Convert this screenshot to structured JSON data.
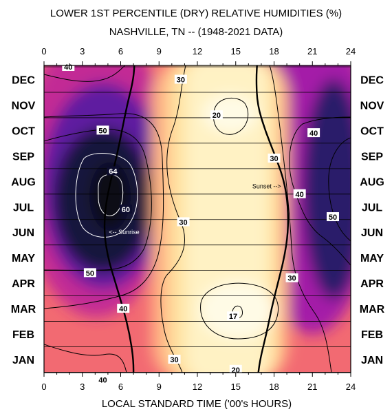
{
  "chart_data": {
    "type": "heatmap",
    "title": "LOWER 1ST PERCENTILE (DRY) RELATIVE HUMIDITIES (%)",
    "subtitle": "NASHVILLE, TN -- (1948-2021 DATA)",
    "xlabel": "LOCAL STANDARD TIME ('00's HOURS)",
    "x_ticks": [
      "0",
      "3",
      "6",
      "9",
      "12",
      "15",
      "18",
      "21",
      "24"
    ],
    "xlim": [
      0,
      24
    ],
    "y_categories": [
      "JAN",
      "FEB",
      "MAR",
      "APR",
      "MAY",
      "JUN",
      "JUL",
      "AUG",
      "SEP",
      "OCT",
      "NOV",
      "DEC"
    ],
    "grid": true,
    "color_scale": [
      "#fff6d0",
      "#ffe7a8",
      "#ffc08c",
      "#ff8a72",
      "#f25a73",
      "#d53089",
      "#a41ea8",
      "#6a1aa0",
      "#321a6e",
      "#0d0d2e"
    ],
    "contour_levels": [
      17,
      20,
      30,
      40,
      50,
      60,
      64
    ],
    "contour_labels": [
      {
        "label": "40",
        "hour": 1.9,
        "month": 11.5
      },
      {
        "label": "30",
        "hour": 10.7,
        "month": 11.0
      },
      {
        "label": "20",
        "hour": 13.5,
        "month": 9.6
      },
      {
        "label": "50",
        "hour": 4.6,
        "month": 9.0
      },
      {
        "label": "40",
        "hour": 21.1,
        "month": 8.9
      },
      {
        "label": "30",
        "hour": 18.0,
        "month": 7.9
      },
      {
        "label": "64",
        "hour": 5.4,
        "month": 7.4
      },
      {
        "label": "40",
        "hour": 20.0,
        "month": 6.5
      },
      {
        "label": "60",
        "hour": 6.4,
        "month": 5.9
      },
      {
        "label": "50",
        "hour": 22.6,
        "month": 5.6
      },
      {
        "label": "30",
        "hour": 10.9,
        "month": 5.4
      },
      {
        "label": "50",
        "hour": 3.6,
        "month": 3.4
      },
      {
        "label": "30",
        "hour": 19.4,
        "month": 3.2
      },
      {
        "label": "40",
        "hour": 6.2,
        "month": 2.0
      },
      {
        "label": "17",
        "hour": 14.8,
        "month": 1.7
      },
      {
        "label": "30",
        "hour": 10.2,
        "month": 0.0
      },
      {
        "label": "20",
        "hour": 15.0,
        "month": -0.4
      },
      {
        "label": "40",
        "hour": 4.6,
        "month": -0.8
      }
    ],
    "sunrise_curve": [
      {
        "month": -0.8,
        "hour": 7.0
      },
      {
        "month": 0,
        "hour": 7.0
      },
      {
        "month": 1,
        "hour": 6.7
      },
      {
        "month": 2,
        "hour": 6.2
      },
      {
        "month": 3,
        "hour": 5.6
      },
      {
        "month": 4,
        "hour": 5.0
      },
      {
        "month": 5,
        "hour": 4.7
      },
      {
        "month": 6,
        "hour": 4.8
      },
      {
        "month": 7,
        "hour": 5.2
      },
      {
        "month": 8,
        "hour": 5.7
      },
      {
        "month": 9,
        "hour": 6.1
      },
      {
        "month": 10,
        "hour": 6.5
      },
      {
        "month": 11,
        "hour": 7.0
      },
      {
        "month": 11.8,
        "hour": 7.1
      }
    ],
    "sunset_curve": [
      {
        "month": -0.8,
        "hour": 16.7
      },
      {
        "month": 0,
        "hour": 16.9
      },
      {
        "month": 1,
        "hour": 17.4
      },
      {
        "month": 2,
        "hour": 17.8
      },
      {
        "month": 3,
        "hour": 18.3
      },
      {
        "month": 4,
        "hour": 18.8
      },
      {
        "month": 5,
        "hour": 19.1
      },
      {
        "month": 6,
        "hour": 19.1
      },
      {
        "month": 7,
        "hour": 18.8
      },
      {
        "month": 8,
        "hour": 18.1
      },
      {
        "month": 9,
        "hour": 17.3
      },
      {
        "month": 10,
        "hour": 16.7
      },
      {
        "month": 11,
        "hour": 16.6
      },
      {
        "month": 11.8,
        "hour": 16.7
      }
    ],
    "annotations": [
      {
        "text": "<-- Sunrise",
        "hour": 4.7,
        "month": 5.0
      },
      {
        "text": "Sunset -->",
        "hour": 16.3,
        "month": 6.8
      }
    ]
  }
}
